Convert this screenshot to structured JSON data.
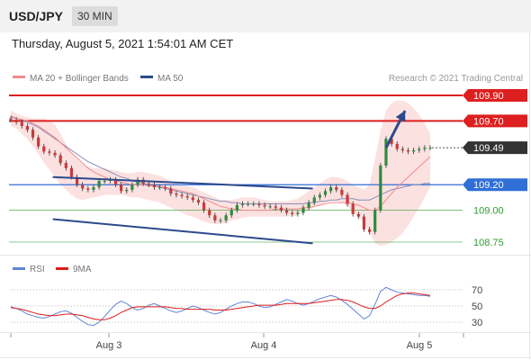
{
  "header": {
    "symbol": "USD/JPY",
    "timeframe": "30 MIN"
  },
  "datetime": "Thursday, August 5, 2021 1:54:01 AM CET",
  "legend": {
    "ma20": "MA 20 + Bollinger Bands",
    "ma50": "MA 50",
    "credit": "Research © 2021 Trading Central"
  },
  "rsi_legend": {
    "rsi": "RSI",
    "ma": "9MA"
  },
  "colors": {
    "resistance": "#dd1f1f",
    "pivot": "#2f6fd6",
    "support": "#2e9b2e",
    "trendline": "#2c4a8c",
    "ma20": "#f08c8c",
    "ma50": "#8a8fb8",
    "band": "#fbd9d9",
    "rsi": "#5f85d6",
    "rsi_ma": "#e01b1b"
  },
  "chart_data": [
    {
      "type": "line",
      "title": "USD/JPY 30 MIN",
      "x_ticks": [
        "Aug 3",
        "Aug 4",
        "Aug 5"
      ],
      "ylim": [
        108.7,
        109.95
      ],
      "levels": [
        {
          "value": "109.90",
          "kind": "resistance",
          "style": "badge"
        },
        {
          "value": "109.70",
          "kind": "resistance",
          "style": "badge"
        },
        {
          "value": "109.49",
          "kind": "last",
          "style": "badge"
        },
        {
          "value": "109.20",
          "kind": "pivot",
          "style": "badge"
        },
        {
          "value": "109.00",
          "kind": "support",
          "style": "text"
        },
        {
          "value": "108.75",
          "kind": "support",
          "style": "text"
        }
      ],
      "price": [
        109.71,
        109.69,
        109.66,
        109.63,
        109.57,
        109.5,
        109.46,
        109.45,
        109.43,
        109.37,
        109.33,
        109.26,
        109.2,
        109.17,
        109.16,
        109.18,
        109.23,
        109.23,
        109.24,
        109.2,
        109.15,
        109.16,
        109.2,
        109.24,
        109.21,
        109.2,
        109.18,
        109.18,
        109.17,
        109.13,
        109.12,
        109.11,
        109.1,
        109.08,
        109.06,
        109.0,
        108.96,
        108.92,
        108.92,
        108.96,
        109.0,
        109.04,
        109.05,
        109.05,
        109.05,
        109.04,
        109.03,
        109.03,
        109.02,
        109.0,
        108.98,
        108.97,
        108.98,
        109.02,
        109.06,
        109.1,
        109.12,
        109.15,
        109.18,
        109.16,
        109.12,
        109.05,
        108.97,
        108.95,
        108.85,
        108.83,
        109.0,
        109.35,
        109.56,
        109.52,
        109.48,
        109.47,
        109.46,
        109.47,
        109.48,
        109.49,
        109.49
      ],
      "ma20": [
        109.74,
        109.72,
        109.71,
        109.7,
        109.68,
        109.66,
        109.63,
        109.6,
        109.57,
        109.53,
        109.49,
        109.45,
        109.41,
        109.37,
        109.33,
        109.3,
        109.28,
        109.26,
        109.24,
        109.23,
        109.22,
        109.21,
        109.2,
        109.2,
        109.2,
        109.19,
        109.19,
        109.19,
        109.18,
        109.17,
        109.16,
        109.15,
        109.14,
        109.13,
        109.11,
        109.09,
        109.07,
        109.05,
        109.03,
        109.02,
        109.01,
        109.01,
        109.0,
        109.0,
        109.0,
        109.0,
        109.0,
        109.0,
        109.01,
        109.01,
        109.01,
        109.01,
        109.01,
        109.02,
        109.02,
        109.03,
        109.04,
        109.05,
        109.06,
        109.06,
        109.06,
        109.06,
        109.05,
        109.04,
        109.02,
        109.0,
        109.0,
        109.03,
        109.08,
        109.13,
        109.18,
        109.22,
        109.26,
        109.3,
        109.34,
        109.38,
        109.42
      ],
      "ma50": [
        109.73,
        109.72,
        109.71,
        109.69,
        109.67,
        109.65,
        109.62,
        109.59,
        109.56,
        109.53,
        109.5,
        109.47,
        109.44,
        109.41,
        109.38,
        109.36,
        109.34,
        109.32,
        109.3,
        109.28,
        109.26,
        109.25,
        109.23,
        109.22,
        109.21,
        109.2,
        109.19,
        109.18,
        109.17,
        109.16,
        109.15,
        109.14,
        109.13,
        109.12,
        109.11,
        109.1,
        109.09,
        109.08,
        109.07,
        109.07,
        109.06,
        109.06,
        109.05,
        109.05,
        109.05,
        109.05,
        109.05,
        109.05,
        109.05,
        109.05,
        109.05,
        109.05,
        109.05,
        109.05,
        109.06,
        109.06,
        109.07,
        109.07,
        109.08,
        109.08,
        109.09,
        109.09,
        109.09,
        109.08,
        109.08,
        109.08,
        109.1,
        109.12,
        109.14,
        109.16,
        109.17,
        109.18,
        109.19,
        109.2,
        109.2,
        109.21,
        109.21
      ],
      "bollinger_upper": [
        109.78,
        109.76,
        109.74,
        109.73,
        109.72,
        109.72,
        109.72,
        109.7,
        109.67,
        109.6,
        109.52,
        109.45,
        109.4,
        109.36,
        109.34,
        109.33,
        109.33,
        109.33,
        109.32,
        109.31,
        109.3,
        109.29,
        109.29,
        109.3,
        109.3,
        109.29,
        109.28,
        109.27,
        109.25,
        109.23,
        109.21,
        109.2,
        109.19,
        109.18,
        109.16,
        109.14,
        109.12,
        109.1,
        109.08,
        109.08,
        109.08,
        109.09,
        109.1,
        109.1,
        109.1,
        109.09,
        109.08,
        109.07,
        109.07,
        109.07,
        109.07,
        109.08,
        109.09,
        109.12,
        109.15,
        109.18,
        109.21,
        109.24,
        109.26,
        109.26,
        109.25,
        109.23,
        109.2,
        109.18,
        109.16,
        109.2,
        109.4,
        109.62,
        109.78,
        109.84,
        109.86,
        109.86,
        109.84,
        109.8,
        109.75,
        109.68,
        109.6
      ],
      "bollinger_lower": [
        109.66,
        109.64,
        109.6,
        109.56,
        109.5,
        109.44,
        109.37,
        109.32,
        109.26,
        109.2,
        109.16,
        109.12,
        109.09,
        109.08,
        109.09,
        109.1,
        109.11,
        109.12,
        109.12,
        109.12,
        109.12,
        109.11,
        109.1,
        109.1,
        109.09,
        109.08,
        109.07,
        109.06,
        109.04,
        109.02,
        109.0,
        108.98,
        108.96,
        108.95,
        108.93,
        108.91,
        108.9,
        108.89,
        108.89,
        108.9,
        108.92,
        108.93,
        108.94,
        108.95,
        108.95,
        108.95,
        108.95,
        108.95,
        108.95,
        108.95,
        108.95,
        108.95,
        108.96,
        108.98,
        109.0,
        109.02,
        109.04,
        109.06,
        109.07,
        109.07,
        109.06,
        109.03,
        108.99,
        108.95,
        108.9,
        108.82,
        108.74,
        108.72,
        108.73,
        108.75,
        108.78,
        108.82,
        108.88,
        108.95,
        109.02,
        109.1,
        109.18
      ],
      "trendlines": [
        {
          "from": [
            0.1,
            109.26
          ],
          "to": [
            0.72,
            109.17
          ]
        },
        {
          "from": [
            0.1,
            108.93
          ],
          "to": [
            0.72,
            108.74
          ]
        },
        {
          "from": [
            0.895,
            109.49
          ],
          "to": [
            0.94,
            109.78
          ]
        }
      ]
    },
    {
      "type": "line",
      "title": "RSI",
      "ylim": [
        20,
        80
      ],
      "y_ticks": [
        "70",
        "50",
        "30"
      ],
      "rsi": [
        49,
        47,
        44,
        40,
        38,
        36,
        35,
        37,
        40,
        43,
        44,
        41,
        36,
        31,
        27,
        26,
        30,
        37,
        45,
        52,
        56,
        53,
        48,
        45,
        47,
        51,
        53,
        50,
        47,
        44,
        42,
        44,
        47,
        50,
        48,
        45,
        42,
        40,
        42,
        46,
        50,
        53,
        55,
        55,
        53,
        50,
        48,
        49,
        52,
        55,
        58,
        56,
        53,
        51,
        53,
        56,
        59,
        61,
        63,
        61,
        57,
        52,
        46,
        40,
        34,
        38,
        52,
        68,
        73,
        70,
        67,
        66,
        65,
        64,
        63,
        63,
        62
      ],
      "ma9": [
        48,
        47,
        46,
        44,
        42,
        40,
        39,
        38,
        38,
        39,
        40,
        40,
        39,
        38,
        36,
        34,
        33,
        33,
        35,
        38,
        42,
        45,
        48,
        49,
        49,
        49,
        49,
        49,
        49,
        48,
        47,
        47,
        46,
        46,
        46,
        46,
        46,
        45,
        45,
        45,
        46,
        47,
        48,
        49,
        50,
        51,
        51,
        51,
        51,
        52,
        53,
        53,
        53,
        53,
        53,
        54,
        55,
        56,
        57,
        58,
        58,
        57,
        55,
        52,
        49,
        47,
        47,
        50,
        55,
        59,
        63,
        65,
        66,
        66,
        65,
        64,
        63
      ]
    }
  ]
}
